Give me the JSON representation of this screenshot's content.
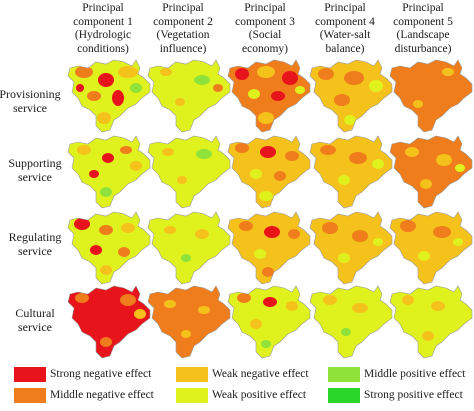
{
  "columns": [
    {
      "line1": "Principal",
      "line2": "component 1",
      "line3": "(Hydrologic",
      "line4": "conditions)"
    },
    {
      "line1": "Principal",
      "line2": "component 2",
      "line3": "(Vegetation",
      "line4": "influence)"
    },
    {
      "line1": "Principal",
      "line2": "component 3",
      "line3": "(Social",
      "line4": "economy)"
    },
    {
      "line1": "Principal",
      "line2": "component 4",
      "line3": "(Water-salt",
      "line4": "balance)"
    },
    {
      "line1": "Principal",
      "line2": "component 5",
      "line3": "(Landscape",
      "line4": "disturbance)"
    }
  ],
  "rows": [
    {
      "line1": "Provisioning",
      "line2": "service"
    },
    {
      "line1": "Supporting",
      "line2": "service"
    },
    {
      "line1": "Regulating",
      "line2": "service"
    },
    {
      "line1": "Cultural",
      "line2": "service"
    }
  ],
  "legend": [
    {
      "label": "Strong negative effect",
      "color": "#e8141c"
    },
    {
      "label": "Weak negative effect",
      "color": "#f5c21b"
    },
    {
      "label": "Middle positive effect",
      "color": "#8fe23a"
    },
    {
      "label": "Middle negative effect",
      "color": "#ef7d1c"
    },
    {
      "label": "Weak positive effect",
      "color": "#dff21e"
    },
    {
      "label": "Strong positive effect",
      "color": "#2bd62b"
    }
  ]
}
